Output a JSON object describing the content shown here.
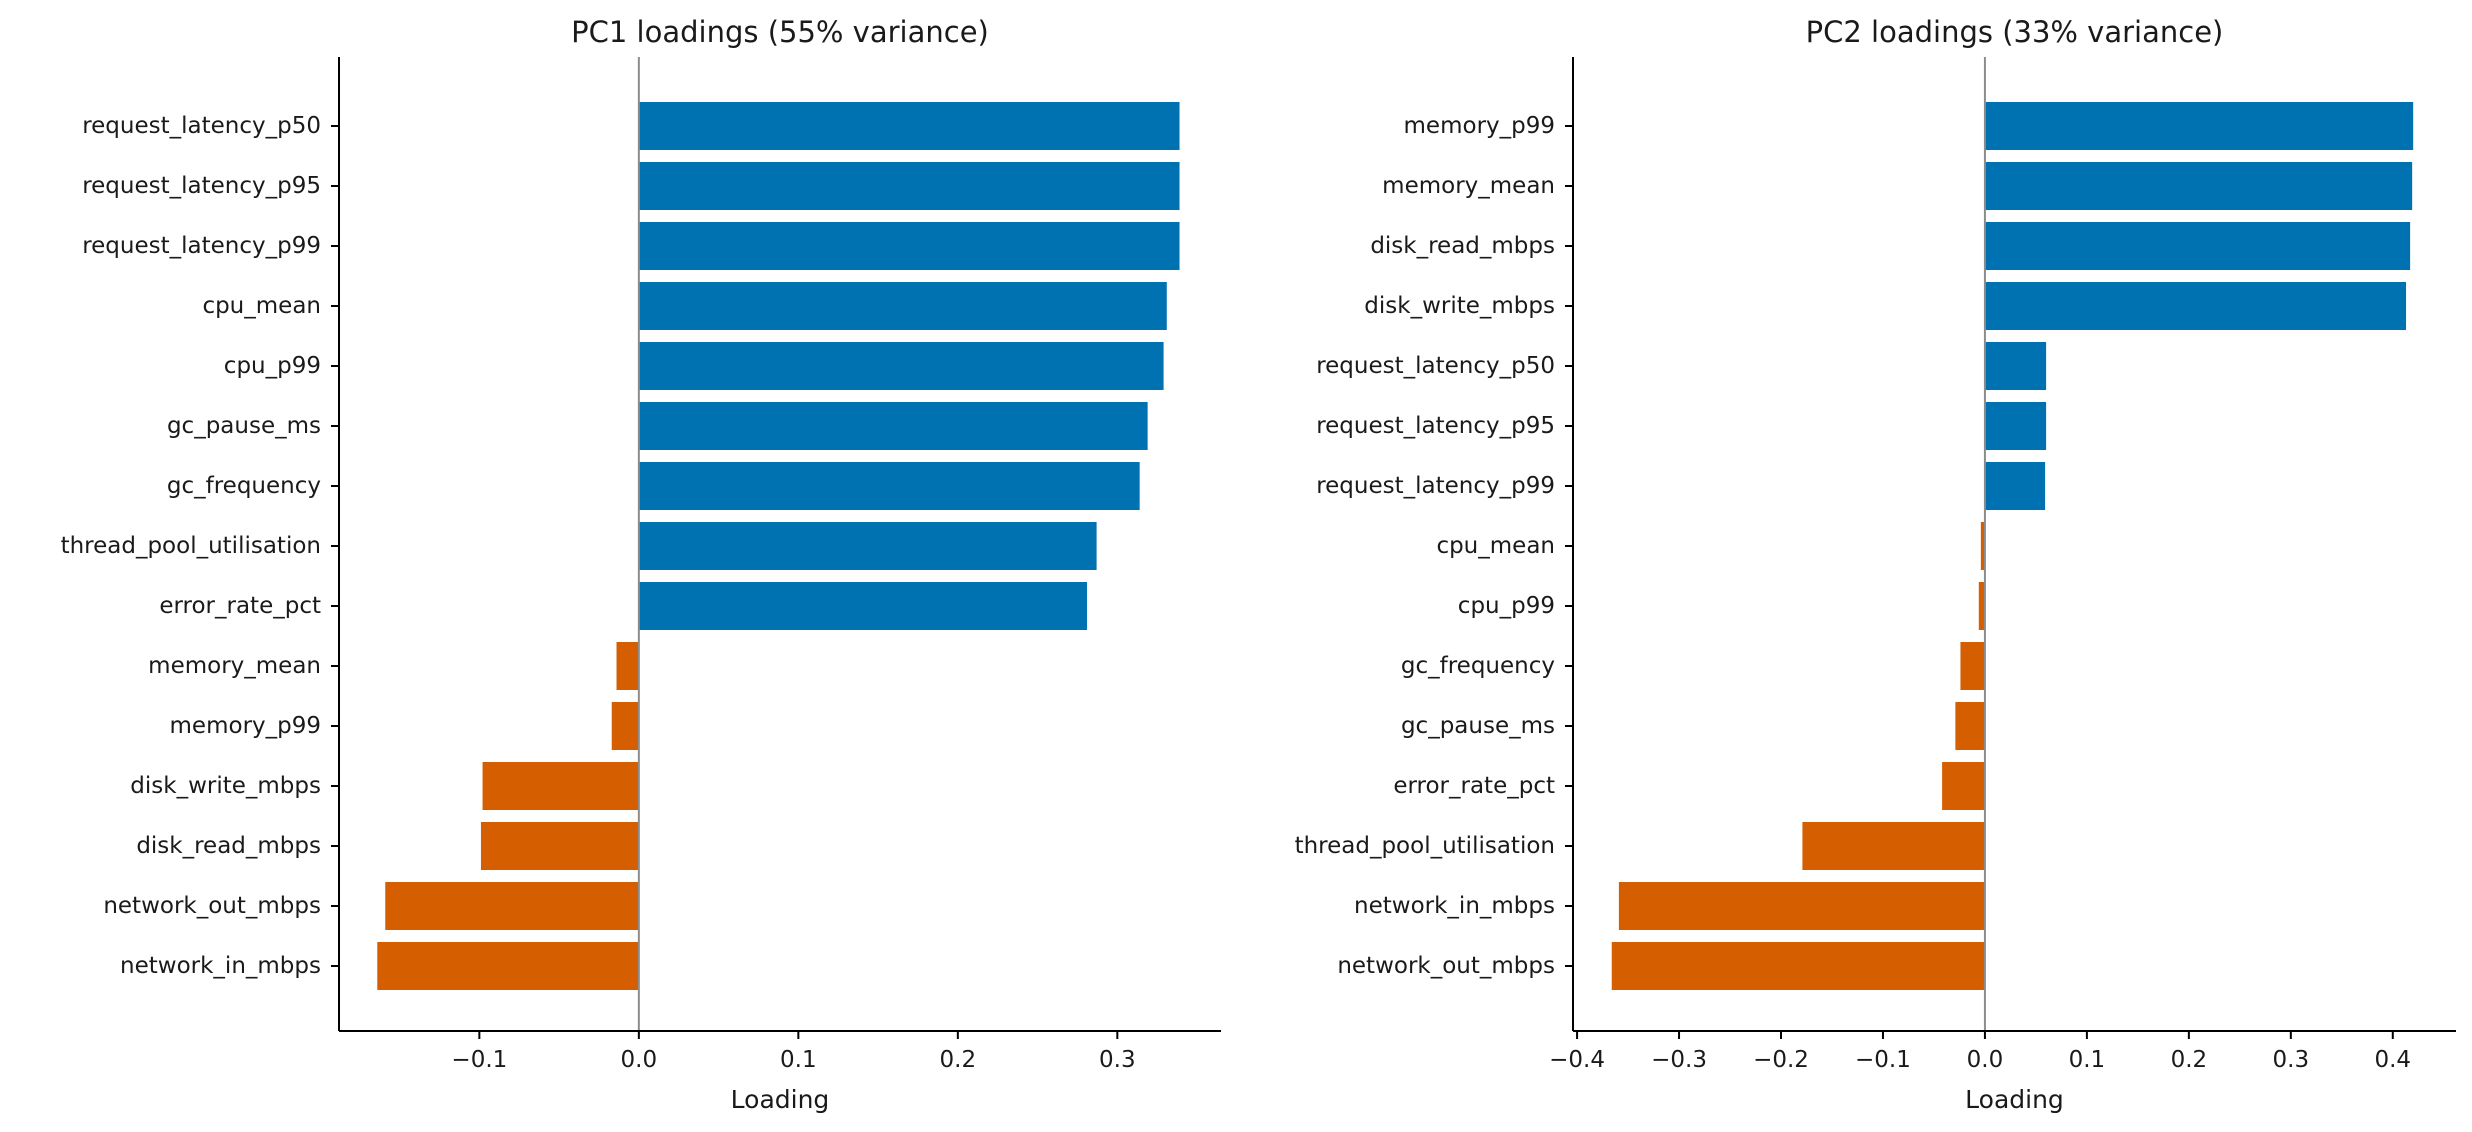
{
  "chart_data": [
    {
      "type": "bar",
      "orientation": "horizontal",
      "title": "PC1 loadings (55% variance)",
      "xlabel": "Loading",
      "ylabel": "",
      "xlim": [
        -0.188,
        0.365
      ],
      "xticks": [
        -0.1,
        0.0,
        0.1,
        0.2,
        0.3
      ],
      "xtick_labels": [
        "−0.1",
        "0.0",
        "0.1",
        "0.2",
        "0.3"
      ],
      "categories": [
        "request_latency_p50",
        "request_latency_p95",
        "request_latency_p99",
        "cpu_mean",
        "cpu_p99",
        "gc_pause_ms",
        "gc_frequency",
        "thread_pool_utilisation",
        "error_rate_pct",
        "memory_mean",
        "memory_p99",
        "disk_write_mbps",
        "disk_read_mbps",
        "network_out_mbps",
        "network_in_mbps"
      ],
      "values": [
        0.339,
        0.339,
        0.339,
        0.331,
        0.329,
        0.319,
        0.314,
        0.287,
        0.281,
        -0.014,
        -0.017,
        -0.098,
        -0.099,
        -0.159,
        -0.164
      ],
      "colors": {
        "positive": "#0072b2",
        "negative": "#d55e00"
      },
      "grid": false,
      "legend": "none"
    },
    {
      "type": "bar",
      "orientation": "horizontal",
      "title": "PC2 loadings (33% variance)",
      "xlabel": "Loading",
      "ylabel": "",
      "xlim": [
        -0.404,
        0.462
      ],
      "xticks": [
        -0.4,
        -0.3,
        -0.2,
        -0.1,
        0.0,
        0.1,
        0.2,
        0.3,
        0.4
      ],
      "xtick_labels": [
        "−0.4",
        "−0.3",
        "−0.2",
        "−0.1",
        "0.0",
        "0.1",
        "0.2",
        "0.3",
        "0.4"
      ],
      "categories": [
        "memory_p99",
        "memory_mean",
        "disk_read_mbps",
        "disk_write_mbps",
        "request_latency_p50",
        "request_latency_p95",
        "request_latency_p99",
        "cpu_mean",
        "cpu_p99",
        "gc_frequency",
        "gc_pause_ms",
        "error_rate_pct",
        "thread_pool_utilisation",
        "network_in_mbps",
        "network_out_mbps"
      ],
      "values": [
        0.42,
        0.419,
        0.417,
        0.413,
        0.06,
        0.06,
        0.059,
        -0.004,
        -0.006,
        -0.024,
        -0.029,
        -0.042,
        -0.179,
        -0.359,
        -0.366
      ],
      "colors": {
        "positive": "#0072b2",
        "negative": "#d55e00"
      },
      "grid": false,
      "legend": "none"
    }
  ]
}
